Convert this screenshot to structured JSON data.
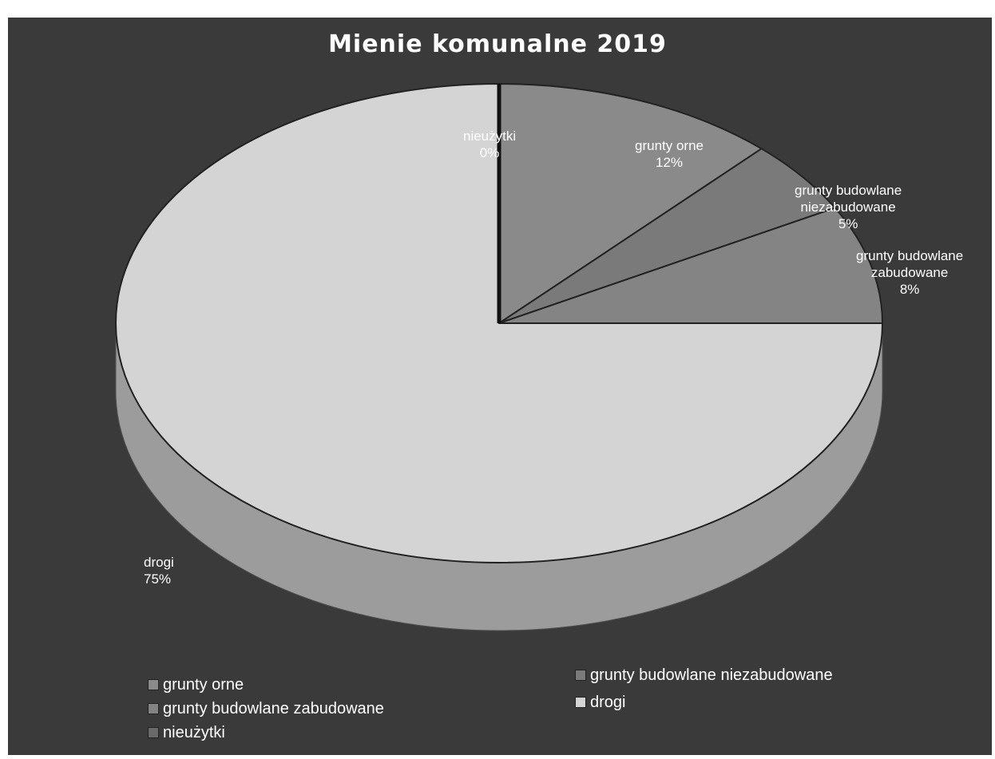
{
  "chart_data": {
    "type": "pie",
    "title": "Mienie komunalne 2019",
    "slices": [
      {
        "label": "grunty orne",
        "value": 12,
        "value_label": "12%",
        "color": "#8a8a8a"
      },
      {
        "label": "grunty budowlane niezabudowane",
        "value": 5,
        "value_label": "5%",
        "color": "#7a7a7a"
      },
      {
        "label": "grunty budowlane zabudowane",
        "value": 8,
        "value_label": "8%",
        "color": "#848484"
      },
      {
        "label": "drogi",
        "value": 75,
        "value_label": "75%",
        "color": "#d4d4d4"
      },
      {
        "label": "nieużytki",
        "value": 0,
        "value_label": "0%",
        "color": "#6a6a6a"
      }
    ],
    "data_labels": {
      "grunty_orne": {
        "name": "grunty orne",
        "pct": "12%"
      },
      "niezabudowane": {
        "name_line1": "grunty budowlane",
        "name_line2": "niezabudowane",
        "pct": "5%"
      },
      "zabudowane": {
        "name_line1": "grunty budowlane",
        "name_line2": "zabudowane",
        "pct": "8%"
      },
      "drogi": {
        "name": "drogi",
        "pct": "75%"
      },
      "nieuzytki": {
        "name": "nieużytki",
        "pct": "0%"
      }
    },
    "legend": {
      "placement": "bottom",
      "entries": [
        {
          "label": "grunty orne",
          "color": "#8a8a8a"
        },
        {
          "label": "grunty budowlane niezabudowane",
          "color": "#7a7a7a"
        },
        {
          "label": "grunty budowlane zabudowane",
          "color": "#848484"
        },
        {
          "label": "drogi",
          "color": "#d4d4d4"
        },
        {
          "label": "nieużytki",
          "color": "#6a6a6a"
        }
      ]
    }
  }
}
